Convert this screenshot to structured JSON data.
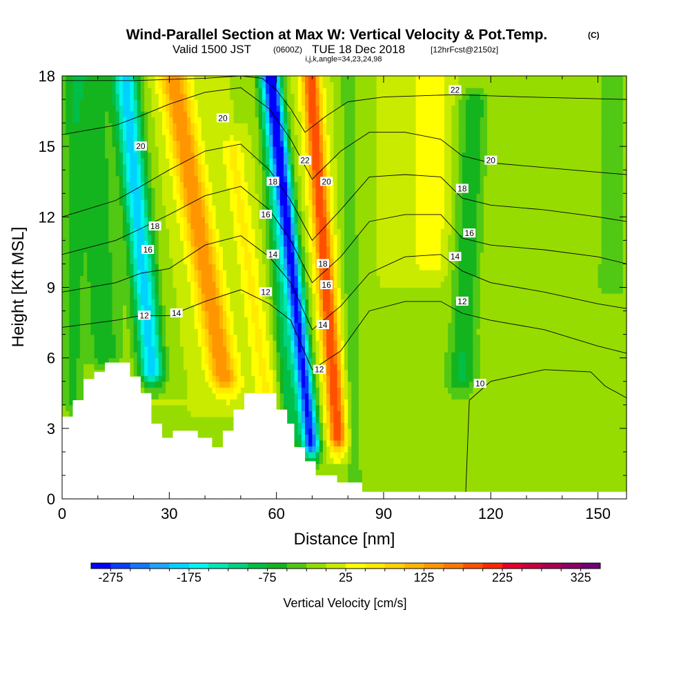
{
  "chart_data": {
    "type": "heatmap",
    "title": "Wind-Parallel Section at Max W: Vertical Velocity & Pot.Temp.",
    "title_mark": "(C)",
    "subtitle_main": "Valid 1500 JST",
    "subtitle_utc": "(0600Z)",
    "subtitle_date": "TUE 18 Dec 2018",
    "subtitle_fcst": "[12hrFcst@2150z]",
    "subtitle_indices": "i,j,k,angle=34,23,24,98",
    "xlabel": "Distance [nm]",
    "ylabel": "Height [Kft MSL]",
    "xlim": [
      0,
      158
    ],
    "ylim": [
      0,
      18
    ],
    "x_ticks": [
      "0",
      "30",
      "60",
      "90",
      "120",
      "150"
    ],
    "y_ticks": [
      "0",
      "3",
      "6",
      "9",
      "12",
      "15",
      "18"
    ],
    "colorbar_label": "Vertical Velocity [cm/s]",
    "colorbar_ticks": [
      "-275",
      "-175",
      "-75",
      "25",
      "125",
      "225",
      "325"
    ],
    "colorbar_levels": [
      -300,
      -275,
      -250,
      -225,
      -200,
      -175,
      -150,
      -125,
      -100,
      -75,
      -50,
      -25,
      0,
      25,
      50,
      75,
      100,
      125,
      150,
      175,
      200,
      225,
      250,
      275,
      300,
      325,
      350
    ],
    "colorbar_colors": [
      "#0000ff",
      "#0a3cff",
      "#1478ff",
      "#1ea5ff",
      "#00d2ff",
      "#00f5f0",
      "#00e6b4",
      "#00d27d",
      "#00be46",
      "#14b41e",
      "#50c814",
      "#96dc00",
      "#c8eb00",
      "#ffff00",
      "#ffeb00",
      "#ffd200",
      "#ffb400",
      "#ff9600",
      "#ff7800",
      "#ff5000",
      "#ff2800",
      "#e6002d",
      "#c8003c",
      "#aa0050",
      "#8c0064",
      "#6e0078"
    ],
    "background_value": 0,
    "vertical_velocity_features": [
      {
        "x_center": 3,
        "x_width": 3,
        "y_bottom": 4,
        "y_top": 18,
        "tilt": 0.0,
        "value": -55
      },
      {
        "x_center": 23,
        "x_width": 3.5,
        "y_bottom": 5.3,
        "y_top": 18,
        "tilt": -0.6,
        "value": -190
      },
      {
        "x_center": 11,
        "x_width": 5,
        "y_bottom": 6,
        "y_top": 18,
        "tilt": -0.3,
        "value": -70
      },
      {
        "x_center": 41,
        "x_width": 4,
        "y_bottom": 5,
        "y_top": 18,
        "tilt": -1.1,
        "value": 150
      },
      {
        "x_center": 53,
        "x_width": 3,
        "y_bottom": 4.5,
        "y_top": 15,
        "tilt": -0.9,
        "value": 55
      },
      {
        "x_center": 65,
        "x_width": 2.4,
        "y_bottom": 2.2,
        "y_top": 18,
        "tilt": -0.7,
        "value": -280
      },
      {
        "x_center": 61,
        "x_width": 2.5,
        "y_bottom": 2.5,
        "y_top": 18,
        "tilt": -0.5,
        "value": -90
      },
      {
        "x_center": 74,
        "x_width": 2.6,
        "y_bottom": 2.5,
        "y_top": 18,
        "tilt": -0.5,
        "value": 200
      },
      {
        "x_center": 81,
        "x_width": 2.5,
        "y_bottom": 0.5,
        "y_top": 18,
        "tilt": -0.1,
        "value": -40
      },
      {
        "x_center": 103,
        "x_width": 5,
        "y_bottom": 10,
        "y_top": 18,
        "tilt": 0.0,
        "value": 45
      },
      {
        "x_center": 113,
        "x_width": 4,
        "y_bottom": 5,
        "y_top": 17,
        "tilt": 0.3,
        "value": -70
      },
      {
        "x_center": 110,
        "x_width": 10,
        "y_bottom": 0.5,
        "y_top": 6,
        "tilt": 0.0,
        "value": -12
      },
      {
        "x_center": 142,
        "x_width": 9,
        "y_bottom": 0.5,
        "y_top": 9,
        "tilt": 0.0,
        "value": -12
      },
      {
        "x_center": 154,
        "x_width": 5,
        "y_bottom": 9,
        "y_top": 18,
        "tilt": 0.0,
        "value": -40
      }
    ],
    "terrain": [
      [
        0,
        3.5
      ],
      [
        3,
        3.5
      ],
      [
        3,
        4.2
      ],
      [
        6,
        4.2
      ],
      [
        6,
        5.1
      ],
      [
        9,
        5.1
      ],
      [
        9,
        5.4
      ],
      [
        12,
        5.4
      ],
      [
        12,
        5.8
      ],
      [
        19,
        5.8
      ],
      [
        19,
        5.2
      ],
      [
        22,
        5.2
      ],
      [
        22,
        4.5
      ],
      [
        25,
        4.5
      ],
      [
        25,
        3.2
      ],
      [
        28,
        3.2
      ],
      [
        28,
        2.6
      ],
      [
        31,
        2.6
      ],
      [
        31,
        2.9
      ],
      [
        38,
        2.9
      ],
      [
        38,
        2.6
      ],
      [
        42,
        2.6
      ],
      [
        42,
        2.2
      ],
      [
        45,
        2.2
      ],
      [
        45,
        2.9
      ],
      [
        48,
        2.9
      ],
      [
        48,
        3.8
      ],
      [
        51,
        3.8
      ],
      [
        51,
        4.5
      ],
      [
        60,
        4.5
      ],
      [
        60,
        3.8
      ],
      [
        63,
        3.8
      ],
      [
        63,
        3.2
      ],
      [
        65,
        3.2
      ],
      [
        65,
        2.2
      ],
      [
        68,
        2.2
      ],
      [
        68,
        1.6
      ],
      [
        71,
        1.6
      ],
      [
        71,
        1.0
      ],
      [
        77,
        1.0
      ],
      [
        77,
        0.7
      ],
      [
        84,
        0.7
      ],
      [
        84,
        0.3
      ],
      [
        158,
        0.3
      ],
      [
        158,
        0.5
      ]
    ],
    "theta_contours": [
      {
        "level": "10",
        "points": [
          [
            113,
            0.3
          ],
          [
            114,
            4.2
          ],
          [
            120,
            5.0
          ],
          [
            135,
            5.5
          ],
          [
            148,
            5.4
          ],
          [
            152,
            4.8
          ],
          [
            158,
            4.3
          ]
        ]
      },
      {
        "level": "12",
        "points": [
          [
            0,
            7.3
          ],
          [
            15,
            7.6
          ],
          [
            22,
            7.8
          ],
          [
            30,
            7.8
          ],
          [
            40,
            8.4
          ],
          [
            50,
            8.9
          ],
          [
            58,
            8.3
          ],
          [
            64,
            7.6
          ],
          [
            70,
            5.5
          ],
          [
            78,
            6.3
          ],
          [
            86,
            8.0
          ],
          [
            96,
            8.4
          ],
          [
            106,
            8.4
          ],
          [
            112,
            7.9
          ],
          [
            120,
            7.6
          ],
          [
            135,
            7.2
          ],
          [
            150,
            6.5
          ],
          [
            158,
            6.2
          ]
        ]
      },
      {
        "level": "14",
        "points": [
          [
            0,
            8.8
          ],
          [
            15,
            9.2
          ],
          [
            22,
            9.6
          ],
          [
            30,
            9.8
          ],
          [
            40,
            10.8
          ],
          [
            50,
            11.2
          ],
          [
            58,
            10.3
          ],
          [
            64,
            9.2
          ],
          [
            70,
            7.2
          ],
          [
            78,
            8.2
          ],
          [
            86,
            9.6
          ],
          [
            96,
            10.3
          ],
          [
            106,
            10.4
          ],
          [
            112,
            9.7
          ],
          [
            120,
            9.2
          ],
          [
            135,
            8.8
          ],
          [
            150,
            8.3
          ],
          [
            158,
            8.1
          ]
        ]
      },
      {
        "level": "16",
        "points": [
          [
            0,
            10.4
          ],
          [
            15,
            11.0
          ],
          [
            22,
            11.5
          ],
          [
            30,
            12.1
          ],
          [
            40,
            12.9
          ],
          [
            50,
            13.3
          ],
          [
            58,
            12.3
          ],
          [
            64,
            11.0
          ],
          [
            70,
            9.2
          ],
          [
            78,
            10.3
          ],
          [
            86,
            11.8
          ],
          [
            96,
            12.1
          ],
          [
            106,
            12.1
          ],
          [
            112,
            11.1
          ],
          [
            120,
            10.8
          ],
          [
            135,
            10.6
          ],
          [
            150,
            10.3
          ],
          [
            158,
            10.0
          ]
        ]
      },
      {
        "level": "18",
        "points": [
          [
            0,
            12.0
          ],
          [
            15,
            12.7
          ],
          [
            22,
            13.3
          ],
          [
            30,
            14.0
          ],
          [
            40,
            14.8
          ],
          [
            50,
            15.1
          ],
          [
            58,
            14.0
          ],
          [
            64,
            12.7
          ],
          [
            70,
            11.0
          ],
          [
            78,
            12.3
          ],
          [
            86,
            13.7
          ],
          [
            96,
            13.8
          ],
          [
            106,
            13.7
          ],
          [
            112,
            12.8
          ],
          [
            120,
            12.5
          ],
          [
            135,
            12.3
          ],
          [
            150,
            12.0
          ],
          [
            158,
            11.8
          ]
        ]
      },
      {
        "level": "20",
        "points": [
          [
            0,
            15.5
          ],
          [
            15,
            15.9
          ],
          [
            22,
            16.3
          ],
          [
            30,
            16.8
          ],
          [
            40,
            17.3
          ],
          [
            50,
            17.5
          ],
          [
            58,
            16.6
          ],
          [
            64,
            15.3
          ],
          [
            70,
            13.6
          ],
          [
            78,
            14.8
          ],
          [
            86,
            15.6
          ],
          [
            96,
            15.6
          ],
          [
            106,
            15.3
          ],
          [
            112,
            14.6
          ],
          [
            120,
            14.3
          ],
          [
            135,
            14.1
          ],
          [
            150,
            13.9
          ],
          [
            158,
            13.8
          ]
        ]
      },
      {
        "level": "22",
        "points": [
          [
            0,
            17.8
          ],
          [
            20,
            17.8
          ],
          [
            40,
            17.9
          ],
          [
            50,
            18.0
          ],
          [
            56,
            17.9
          ],
          [
            60,
            17.4
          ],
          [
            64,
            16.6
          ],
          [
            68,
            15.6
          ],
          [
            74,
            16.3
          ],
          [
            80,
            16.9
          ],
          [
            90,
            17.1
          ],
          [
            110,
            17.2
          ],
          [
            130,
            17.1
          ],
          [
            158,
            17.0
          ]
        ]
      }
    ],
    "contour_labels": [
      {
        "text": "20",
        "x": 22,
        "y": 15.0
      },
      {
        "text": "18",
        "x": 26,
        "y": 11.6
      },
      {
        "text": "16",
        "x": 24,
        "y": 10.6
      },
      {
        "text": "12",
        "x": 23,
        "y": 7.8
      },
      {
        "text": "14",
        "x": 32,
        "y": 7.9
      },
      {
        "text": "20",
        "x": 45,
        "y": 16.2
      },
      {
        "text": "18",
        "x": 59,
        "y": 13.5
      },
      {
        "text": "16",
        "x": 57,
        "y": 12.1
      },
      {
        "text": "14",
        "x": 59,
        "y": 10.4
      },
      {
        "text": "12",
        "x": 57,
        "y": 8.8
      },
      {
        "text": "22",
        "x": 68,
        "y": 14.4
      },
      {
        "text": "20",
        "x": 74,
        "y": 13.5
      },
      {
        "text": "18",
        "x": 73,
        "y": 10.0
      },
      {
        "text": "16",
        "x": 74,
        "y": 9.1
      },
      {
        "text": "14",
        "x": 73,
        "y": 7.4
      },
      {
        "text": "12",
        "x": 72,
        "y": 5.5
      },
      {
        "text": "22",
        "x": 110,
        "y": 17.4
      },
      {
        "text": "20",
        "x": 120,
        "y": 14.4
      },
      {
        "text": "18",
        "x": 112,
        "y": 13.2
      },
      {
        "text": "16",
        "x": 114,
        "y": 11.3
      },
      {
        "text": "14",
        "x": 110,
        "y": 10.3
      },
      {
        "text": "12",
        "x": 112,
        "y": 8.4
      },
      {
        "text": "10",
        "x": 117,
        "y": 4.9
      }
    ]
  }
}
